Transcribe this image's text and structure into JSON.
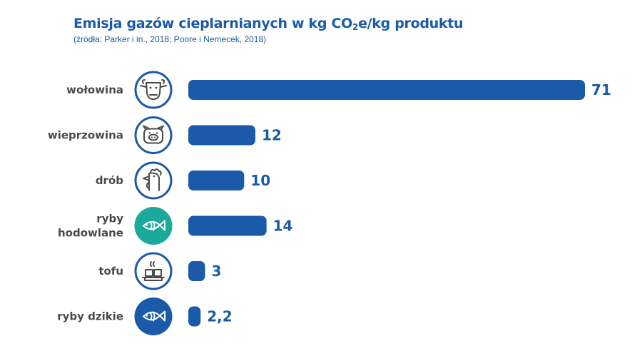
{
  "title_main": "Emisja gazów cieplarnianych w kg CO",
  "title_sub": "2",
  "title_end": "e/kg produktu",
  "subtitle": "(źródła: Parker i in., 2018; Poore i Nemecek, 2018)",
  "colors": {
    "bar": "#1a5aa8",
    "icon_ring": "#1a5aa8",
    "icon_teal": "#1aa99b",
    "label": "#4a4a4a"
  },
  "chart_data": {
    "type": "bar",
    "orientation": "horizontal",
    "title": "Emisja gazów cieplarnianych w kg CO2e/kg produktu",
    "subtitle": "(źródła: Parker i in., 2018; Poore i Nemecek, 2018)",
    "categories": [
      "wołowina",
      "wieprzowina",
      "drób",
      "ryby hodowlane",
      "tofu",
      "ryby dzikie"
    ],
    "category_lines": [
      [
        "wołowina"
      ],
      [
        "wieprzowina"
      ],
      [
        "drób"
      ],
      [
        "ryby",
        "hodowlane"
      ],
      [
        "tofu"
      ],
      [
        "ryby dzikie"
      ]
    ],
    "values": [
      71,
      12,
      10,
      14,
      3,
      2.2
    ],
    "value_labels": [
      "71",
      "12",
      "10",
      "14",
      "3",
      "2,2"
    ],
    "icons": [
      "cow-icon",
      "pig-icon",
      "chicken-icon",
      "fish-icon",
      "tofu-icon",
      "fish-icon"
    ],
    "icon_styles": [
      "outline",
      "outline",
      "outline",
      "teal",
      "outline",
      "filled"
    ],
    "xlim": [
      0,
      71
    ],
    "grid": false,
    "legend": "none"
  }
}
